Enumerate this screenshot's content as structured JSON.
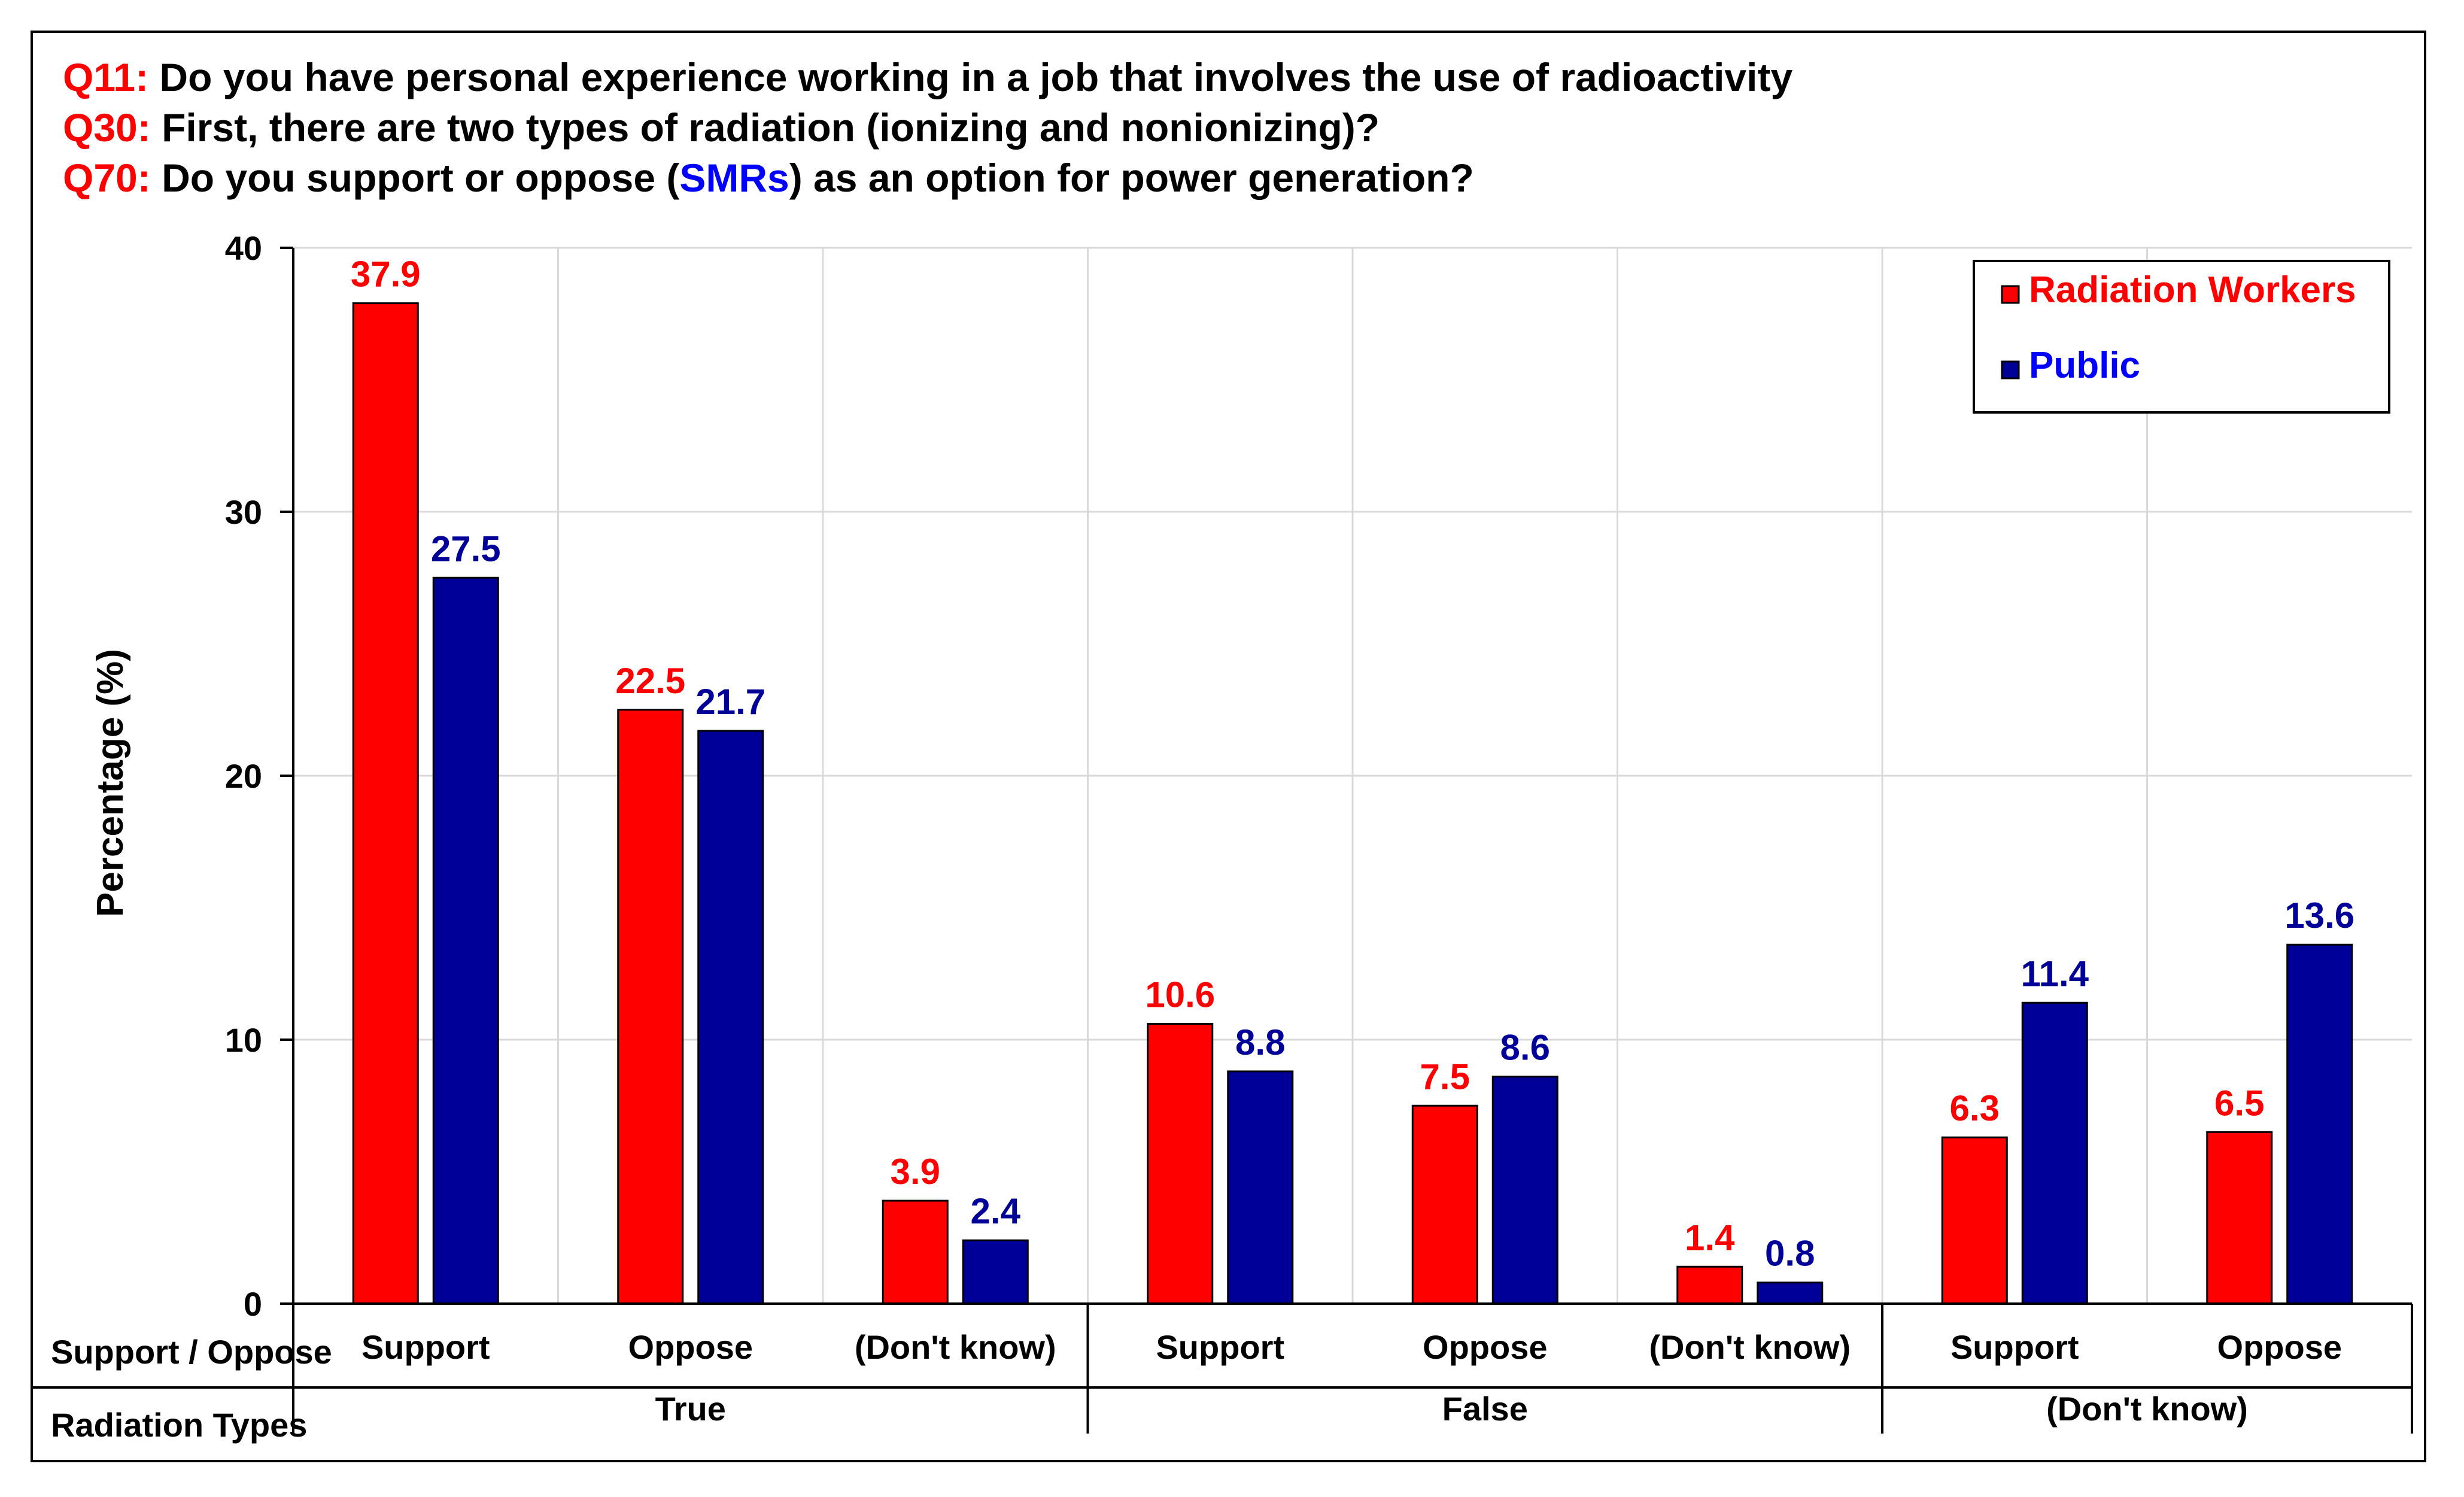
{
  "chart_data": {
    "type": "bar",
    "title_lines": [
      {
        "prefix": "Q11:",
        "text_parts": [
          " Do you have personal experience working in a job that involves the use of radioactivity"
        ]
      },
      {
        "prefix": "Q30:",
        "text_parts": [
          " First, there are two types of radiation (ionizing and nonionizing)?"
        ]
      },
      {
        "prefix": "Q70:",
        "text_parts": [
          " Do you support or oppose (",
          "SMRs",
          ") as an option for power generation?"
        ]
      }
    ],
    "ylabel": "Percentage (%)",
    "ylim": [
      0,
      40
    ],
    "yticks": [
      "0",
      "10",
      "20",
      "30",
      "40"
    ],
    "grid": true,
    "legend_position": "top-right",
    "categories": [
      "Support",
      "Oppose",
      "(Don't know)",
      "Support",
      "Oppose",
      "(Don't know)",
      "Support",
      "Oppose"
    ],
    "groups": [
      {
        "label": "True",
        "count": 3
      },
      {
        "label": "False",
        "count": 3
      },
      {
        "label": "(Don't know)",
        "count": 2
      }
    ],
    "row_labels": {
      "categories": "Support / Oppose",
      "groups": "Radiation Types"
    },
    "series": [
      {
        "name": "Radiation Workers",
        "color": "#ff0000",
        "values": [
          37.9,
          22.5,
          3.9,
          10.6,
          7.5,
          1.4,
          6.3,
          6.5
        ],
        "labels": [
          "37.9",
          "22.5",
          "3.9",
          "10.6",
          "7.5",
          "1.4",
          "6.3",
          "6.5"
        ]
      },
      {
        "name": "Public",
        "color": "#000099",
        "values": [
          27.5,
          21.7,
          2.4,
          8.8,
          8.6,
          0.8,
          11.4,
          13.6
        ],
        "labels": [
          "27.5",
          "21.7",
          "2.4",
          "8.8",
          "8.6",
          "0.8",
          "11.4",
          "13.6"
        ]
      }
    ],
    "colors": {
      "question_prefix": "#ff0000",
      "highlight": "#0000ff",
      "text": "#000000"
    }
  }
}
